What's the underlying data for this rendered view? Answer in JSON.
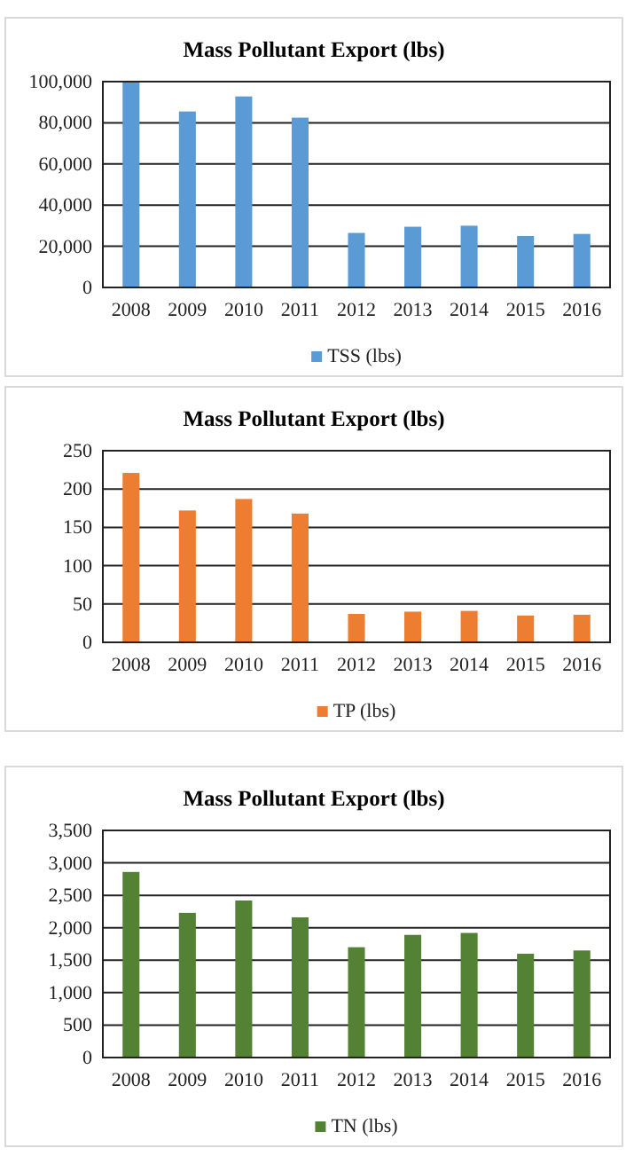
{
  "chart_data": [
    {
      "type": "bar",
      "title": "Mass Pollutant Export (lbs)",
      "categories": [
        "2008",
        "2009",
        "2010",
        "2011",
        "2012",
        "2013",
        "2014",
        "2015",
        "2016"
      ],
      "series": [
        {
          "name": "TSS (lbs)",
          "color": "#5b9bd5",
          "values": [
            100000,
            85500,
            92800,
            82500,
            26500,
            29500,
            30000,
            25000,
            26000
          ]
        }
      ],
      "ylim": [
        0,
        100000
      ],
      "yticks": [
        {
          "value": 0,
          "label": "0"
        },
        {
          "value": 20000,
          "label": "20,000"
        },
        {
          "value": 40000,
          "label": "40,000"
        },
        {
          "value": 60000,
          "label": "60,000"
        },
        {
          "value": 80000,
          "label": "80,000"
        },
        {
          "value": 100000,
          "label": "100,000"
        }
      ],
      "grid": "y",
      "legend": "bottom"
    },
    {
      "type": "bar",
      "title": "Mass Pollutant Export (lbs)",
      "categories": [
        "2008",
        "2009",
        "2010",
        "2011",
        "2012",
        "2013",
        "2014",
        "2015",
        "2016"
      ],
      "series": [
        {
          "name": "TP (lbs)",
          "color": "#ed7d31",
          "values": [
            221,
            172,
            187,
            168,
            37,
            40,
            41,
            35,
            36
          ]
        }
      ],
      "ylim": [
        0,
        250
      ],
      "yticks": [
        0,
        50,
        100,
        150,
        200,
        250
      ],
      "grid": "y",
      "legend": "bottom"
    },
    {
      "type": "bar",
      "title": "Mass Pollutant Export (lbs)",
      "categories": [
        "2008",
        "2009",
        "2010",
        "2011",
        "2012",
        "2013",
        "2014",
        "2015",
        "2016"
      ],
      "series": [
        {
          "name": "TN (lbs)",
          "color": "#548235",
          "values": [
            2860,
            2230,
            2420,
            2160,
            1700,
            1890,
            1920,
            1600,
            1650
          ]
        }
      ],
      "ylim": [
        0,
        3500
      ],
      "yticks": [
        {
          "value": 0,
          "label": "0"
        },
        {
          "value": 500,
          "label": "500"
        },
        {
          "value": 1000,
          "label": "1,000"
        },
        {
          "value": 1500,
          "label": "1,500"
        },
        {
          "value": 2000,
          "label": "2,000"
        },
        {
          "value": 2500,
          "label": "2,500"
        },
        {
          "value": 3000,
          "label": "3,000"
        },
        {
          "value": 3500,
          "label": "3,500"
        }
      ],
      "grid": "y",
      "legend": "bottom"
    }
  ]
}
